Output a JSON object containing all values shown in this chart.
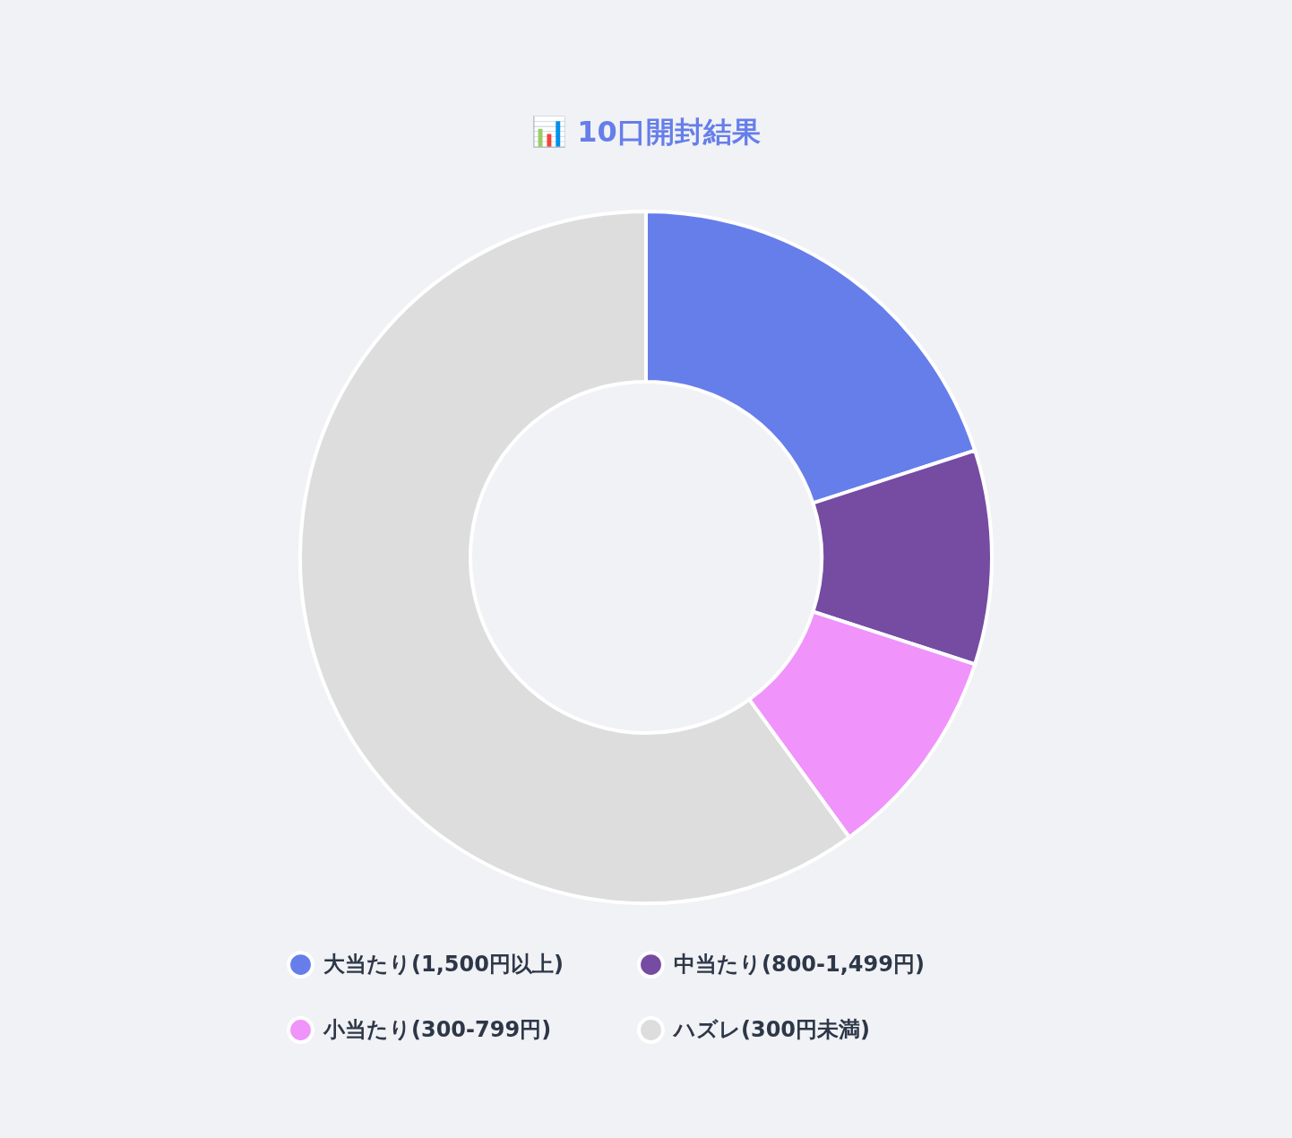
{
  "chart_data": {
    "type": "donut",
    "title": "📊 10口開封結果",
    "categories": [
      "大当たり(1,500円以上)",
      "中当たり(800-1,499円)",
      "小当たり(300-799円)",
      "ハズレ(300円未満)"
    ],
    "values": [
      20,
      10,
      10,
      60
    ],
    "colors": [
      "#667eea",
      "#764ba2",
      "#f093fb",
      "#dddddd"
    ],
    "legend": "bottom"
  }
}
